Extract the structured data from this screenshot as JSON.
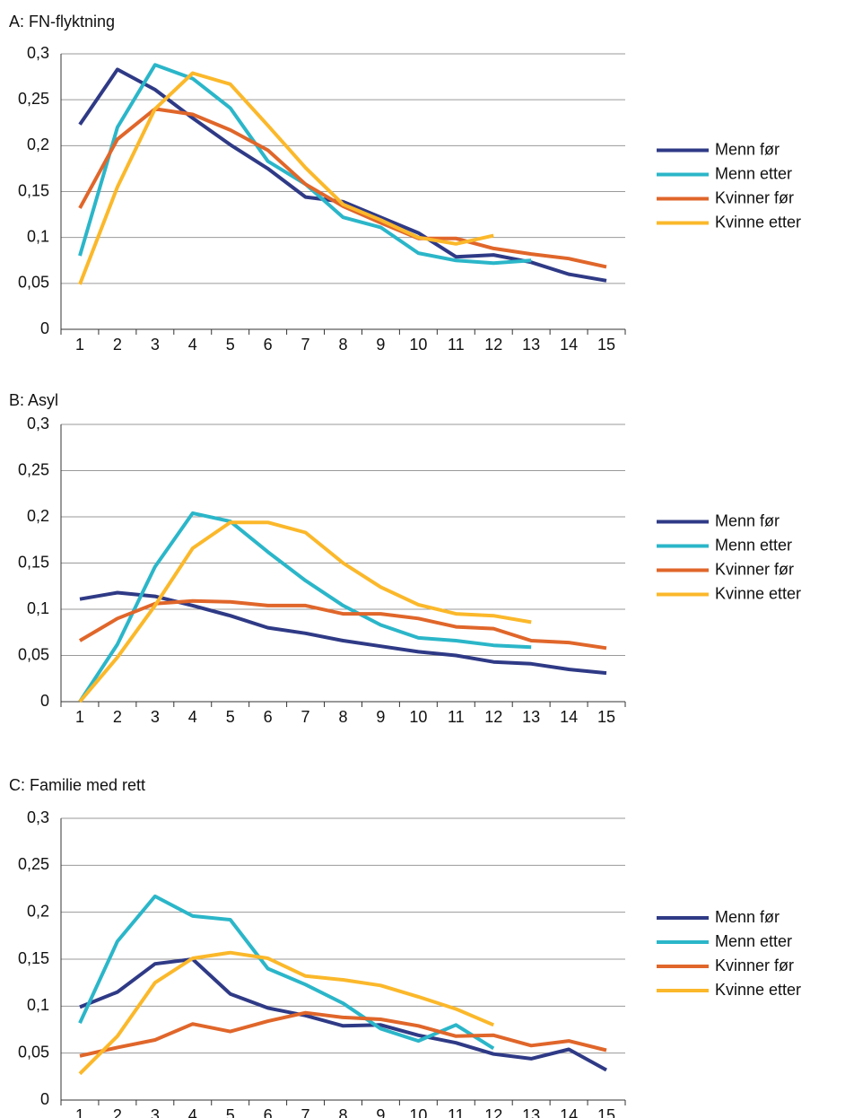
{
  "chart_data": [
    {
      "type": "line",
      "title": "A: FN-flyktning",
      "categories": [
        "1",
        "2",
        "3",
        "4",
        "5",
        "6",
        "7",
        "8",
        "9",
        "10",
        "11",
        "12",
        "13",
        "14",
        "15"
      ],
      "series": [
        {
          "name": "Menn før",
          "color": "#2f3a86",
          "values": [
            0.223,
            0.283,
            0.261,
            0.23,
            0.201,
            0.175,
            0.144,
            0.139,
            0.122,
            0.105,
            0.079,
            0.081,
            0.073,
            0.06,
            0.053
          ]
        },
        {
          "name": "Menn etter",
          "color": "#2bb6c9",
          "values": [
            0.08,
            0.22,
            0.288,
            0.273,
            0.241,
            0.183,
            0.158,
            0.122,
            0.111,
            0.083,
            0.075,
            0.072,
            0.075,
            null,
            null
          ]
        },
        {
          "name": "Kvinner før",
          "color": "#e0662a",
          "values": [
            0.132,
            0.207,
            0.24,
            0.234,
            0.217,
            0.195,
            0.158,
            0.134,
            0.116,
            0.099,
            0.099,
            0.088,
            0.082,
            0.077,
            0.068
          ]
        },
        {
          "name": "Kvinne etter",
          "color": "#fbb82a",
          "values": [
            0.049,
            0.155,
            0.24,
            0.279,
            0.267,
            0.222,
            0.176,
            0.136,
            0.119,
            0.1,
            0.093,
            0.102,
            null,
            null,
            null
          ]
        }
      ],
      "ylim": [
        0,
        0.3
      ],
      "yticks": [
        0,
        {
          "value": 0.05,
          "label": "0,05"
        },
        {
          "value": 0.1,
          "label": "0,1"
        },
        {
          "value": 0.15,
          "label": "0,15"
        },
        {
          "value": 0.2,
          "label": "0,2"
        },
        {
          "value": 0.25,
          "label": "0,25"
        },
        {
          "value": 0.3,
          "label": "0,3"
        }
      ],
      "grid": true,
      "legend": "right"
    },
    {
      "type": "line",
      "title": "B: Asyl",
      "categories": [
        "1",
        "2",
        "3",
        "4",
        "5",
        "6",
        "7",
        "8",
        "9",
        "10",
        "11",
        "12",
        "13",
        "14",
        "15"
      ],
      "series": [
        {
          "name": "Menn før",
          "color": "#2f3a86",
          "values": [
            0.111,
            0.118,
            0.114,
            0.104,
            0.093,
            0.08,
            0.074,
            0.066,
            0.06,
            0.054,
            0.05,
            0.043,
            0.041,
            0.035,
            0.031
          ]
        },
        {
          "name": "Menn etter",
          "color": "#2bb6c9",
          "values": [
            0,
            0.062,
            0.146,
            0.204,
            0.195,
            0.162,
            0.131,
            0.104,
            0.083,
            0.069,
            0.066,
            0.061,
            0.059,
            null,
            null
          ]
        },
        {
          "name": "Kvinner før",
          "color": "#e0662a",
          "values": [
            0.066,
            0.09,
            0.106,
            0.109,
            0.108,
            0.104,
            0.104,
            0.095,
            0.095,
            0.09,
            0.081,
            0.079,
            0.066,
            0.064,
            0.058
          ]
        },
        {
          "name": "Kvinne etter",
          "color": "#fbb82a",
          "values": [
            0,
            0.048,
            0.104,
            0.166,
            0.194,
            0.194,
            0.183,
            0.15,
            0.124,
            0.105,
            0.095,
            0.093,
            0.086,
            null,
            null
          ]
        }
      ],
      "ylim": [
        0,
        0.3
      ],
      "yticks": [
        0,
        {
          "value": 0.05,
          "label": "0,05"
        },
        {
          "value": 0.1,
          "label": "0,1"
        },
        {
          "value": 0.15,
          "label": "0,15"
        },
        {
          "value": 0.2,
          "label": "0,2"
        },
        {
          "value": 0.25,
          "label": "0,25"
        },
        {
          "value": 0.3,
          "label": "0,3"
        }
      ],
      "grid": true,
      "legend": "right"
    },
    {
      "type": "line",
      "title": "C: Familie med rett",
      "categories": [
        "1",
        "2",
        "3",
        "4",
        "5",
        "6",
        "7",
        "8",
        "9",
        "10",
        "11",
        "12",
        "13",
        "14",
        "15"
      ],
      "series": [
        {
          "name": "Menn før",
          "color": "#2f3a86",
          "values": [
            0.099,
            0.115,
            0.145,
            0.15,
            0.113,
            0.098,
            0.09,
            0.079,
            0.08,
            0.069,
            0.061,
            0.049,
            0.044,
            0.054,
            0.032
          ]
        },
        {
          "name": "Menn etter",
          "color": "#2bb6c9",
          "values": [
            0.082,
            0.169,
            0.217,
            0.196,
            0.192,
            0.14,
            0.123,
            0.103,
            0.076,
            0.063,
            0.08,
            0.055,
            null,
            null,
            null
          ]
        },
        {
          "name": "Kvinner før",
          "color": "#e0662a",
          "values": [
            0.047,
            0.056,
            0.064,
            0.081,
            0.073,
            0.084,
            0.093,
            0.088,
            0.086,
            0.079,
            0.068,
            0.069,
            0.058,
            0.063,
            0.053
          ]
        },
        {
          "name": "Kvinne etter",
          "color": "#fbb82a",
          "values": [
            0.028,
            0.068,
            0.125,
            0.151,
            0.157,
            0.151,
            0.132,
            0.128,
            0.122,
            0.11,
            0.097,
            0.08,
            null,
            null,
            null
          ]
        }
      ],
      "ylim": [
        0,
        0.3
      ],
      "yticks": [
        0,
        {
          "value": 0.05,
          "label": "0,05"
        },
        {
          "value": 0.1,
          "label": "0,1"
        },
        {
          "value": 0.15,
          "label": "0,15"
        },
        {
          "value": 0.2,
          "label": "0,2"
        },
        {
          "value": 0.25,
          "label": "0,25"
        },
        {
          "value": 0.3,
          "label": "0,3"
        }
      ],
      "grid": true,
      "legend": "right"
    }
  ]
}
